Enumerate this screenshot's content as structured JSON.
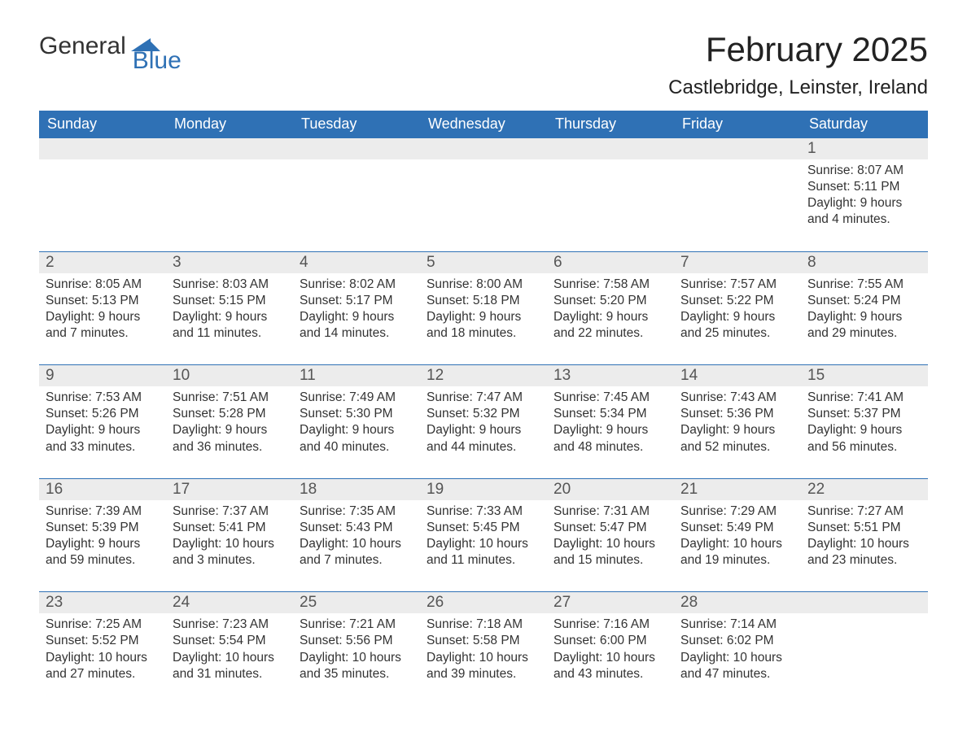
{
  "logo": {
    "text1": "General",
    "text2": "Blue",
    "accent_hex": "#2f71b5"
  },
  "header": {
    "month_title": "February 2025",
    "location": "Castlebridge, Leinster, Ireland"
  },
  "day_names": [
    "Sunday",
    "Monday",
    "Tuesday",
    "Wednesday",
    "Thursday",
    "Friday",
    "Saturday"
  ],
  "style": {
    "accent_color": "#2f71b5",
    "daynum_bg": "#ececec",
    "text_color": "#333333",
    "font_family": "Segoe UI, Arial, sans-serif",
    "month_title_fontsize_pt": 32,
    "location_fontsize_pt": 18,
    "head_fontsize_pt": 14,
    "body_fontsize_pt": 12
  },
  "weeks": [
    [
      null,
      null,
      null,
      null,
      null,
      null,
      {
        "n": "1",
        "sunrise": "Sunrise: 8:07 AM",
        "sunset": "Sunset: 5:11 PM",
        "day1": "Daylight: 9 hours",
        "day2": "and 4 minutes."
      }
    ],
    [
      {
        "n": "2",
        "sunrise": "Sunrise: 8:05 AM",
        "sunset": "Sunset: 5:13 PM",
        "day1": "Daylight: 9 hours",
        "day2": "and 7 minutes."
      },
      {
        "n": "3",
        "sunrise": "Sunrise: 8:03 AM",
        "sunset": "Sunset: 5:15 PM",
        "day1": "Daylight: 9 hours",
        "day2": "and 11 minutes."
      },
      {
        "n": "4",
        "sunrise": "Sunrise: 8:02 AM",
        "sunset": "Sunset: 5:17 PM",
        "day1": "Daylight: 9 hours",
        "day2": "and 14 minutes."
      },
      {
        "n": "5",
        "sunrise": "Sunrise: 8:00 AM",
        "sunset": "Sunset: 5:18 PM",
        "day1": "Daylight: 9 hours",
        "day2": "and 18 minutes."
      },
      {
        "n": "6",
        "sunrise": "Sunrise: 7:58 AM",
        "sunset": "Sunset: 5:20 PM",
        "day1": "Daylight: 9 hours",
        "day2": "and 22 minutes."
      },
      {
        "n": "7",
        "sunrise": "Sunrise: 7:57 AM",
        "sunset": "Sunset: 5:22 PM",
        "day1": "Daylight: 9 hours",
        "day2": "and 25 minutes."
      },
      {
        "n": "8",
        "sunrise": "Sunrise: 7:55 AM",
        "sunset": "Sunset: 5:24 PM",
        "day1": "Daylight: 9 hours",
        "day2": "and 29 minutes."
      }
    ],
    [
      {
        "n": "9",
        "sunrise": "Sunrise: 7:53 AM",
        "sunset": "Sunset: 5:26 PM",
        "day1": "Daylight: 9 hours",
        "day2": "and 33 minutes."
      },
      {
        "n": "10",
        "sunrise": "Sunrise: 7:51 AM",
        "sunset": "Sunset: 5:28 PM",
        "day1": "Daylight: 9 hours",
        "day2": "and 36 minutes."
      },
      {
        "n": "11",
        "sunrise": "Sunrise: 7:49 AM",
        "sunset": "Sunset: 5:30 PM",
        "day1": "Daylight: 9 hours",
        "day2": "and 40 minutes."
      },
      {
        "n": "12",
        "sunrise": "Sunrise: 7:47 AM",
        "sunset": "Sunset: 5:32 PM",
        "day1": "Daylight: 9 hours",
        "day2": "and 44 minutes."
      },
      {
        "n": "13",
        "sunrise": "Sunrise: 7:45 AM",
        "sunset": "Sunset: 5:34 PM",
        "day1": "Daylight: 9 hours",
        "day2": "and 48 minutes."
      },
      {
        "n": "14",
        "sunrise": "Sunrise: 7:43 AM",
        "sunset": "Sunset: 5:36 PM",
        "day1": "Daylight: 9 hours",
        "day2": "and 52 minutes."
      },
      {
        "n": "15",
        "sunrise": "Sunrise: 7:41 AM",
        "sunset": "Sunset: 5:37 PM",
        "day1": "Daylight: 9 hours",
        "day2": "and 56 minutes."
      }
    ],
    [
      {
        "n": "16",
        "sunrise": "Sunrise: 7:39 AM",
        "sunset": "Sunset: 5:39 PM",
        "day1": "Daylight: 9 hours",
        "day2": "and 59 minutes."
      },
      {
        "n": "17",
        "sunrise": "Sunrise: 7:37 AM",
        "sunset": "Sunset: 5:41 PM",
        "day1": "Daylight: 10 hours",
        "day2": "and 3 minutes."
      },
      {
        "n": "18",
        "sunrise": "Sunrise: 7:35 AM",
        "sunset": "Sunset: 5:43 PM",
        "day1": "Daylight: 10 hours",
        "day2": "and 7 minutes."
      },
      {
        "n": "19",
        "sunrise": "Sunrise: 7:33 AM",
        "sunset": "Sunset: 5:45 PM",
        "day1": "Daylight: 10 hours",
        "day2": "and 11 minutes."
      },
      {
        "n": "20",
        "sunrise": "Sunrise: 7:31 AM",
        "sunset": "Sunset: 5:47 PM",
        "day1": "Daylight: 10 hours",
        "day2": "and 15 minutes."
      },
      {
        "n": "21",
        "sunrise": "Sunrise: 7:29 AM",
        "sunset": "Sunset: 5:49 PM",
        "day1": "Daylight: 10 hours",
        "day2": "and 19 minutes."
      },
      {
        "n": "22",
        "sunrise": "Sunrise: 7:27 AM",
        "sunset": "Sunset: 5:51 PM",
        "day1": "Daylight: 10 hours",
        "day2": "and 23 minutes."
      }
    ],
    [
      {
        "n": "23",
        "sunrise": "Sunrise: 7:25 AM",
        "sunset": "Sunset: 5:52 PM",
        "day1": "Daylight: 10 hours",
        "day2": "and 27 minutes."
      },
      {
        "n": "24",
        "sunrise": "Sunrise: 7:23 AM",
        "sunset": "Sunset: 5:54 PM",
        "day1": "Daylight: 10 hours",
        "day2": "and 31 minutes."
      },
      {
        "n": "25",
        "sunrise": "Sunrise: 7:21 AM",
        "sunset": "Sunset: 5:56 PM",
        "day1": "Daylight: 10 hours",
        "day2": "and 35 minutes."
      },
      {
        "n": "26",
        "sunrise": "Sunrise: 7:18 AM",
        "sunset": "Sunset: 5:58 PM",
        "day1": "Daylight: 10 hours",
        "day2": "and 39 minutes."
      },
      {
        "n": "27",
        "sunrise": "Sunrise: 7:16 AM",
        "sunset": "Sunset: 6:00 PM",
        "day1": "Daylight: 10 hours",
        "day2": "and 43 minutes."
      },
      {
        "n": "28",
        "sunrise": "Sunrise: 7:14 AM",
        "sunset": "Sunset: 6:02 PM",
        "day1": "Daylight: 10 hours",
        "day2": "and 47 minutes."
      },
      null
    ]
  ]
}
